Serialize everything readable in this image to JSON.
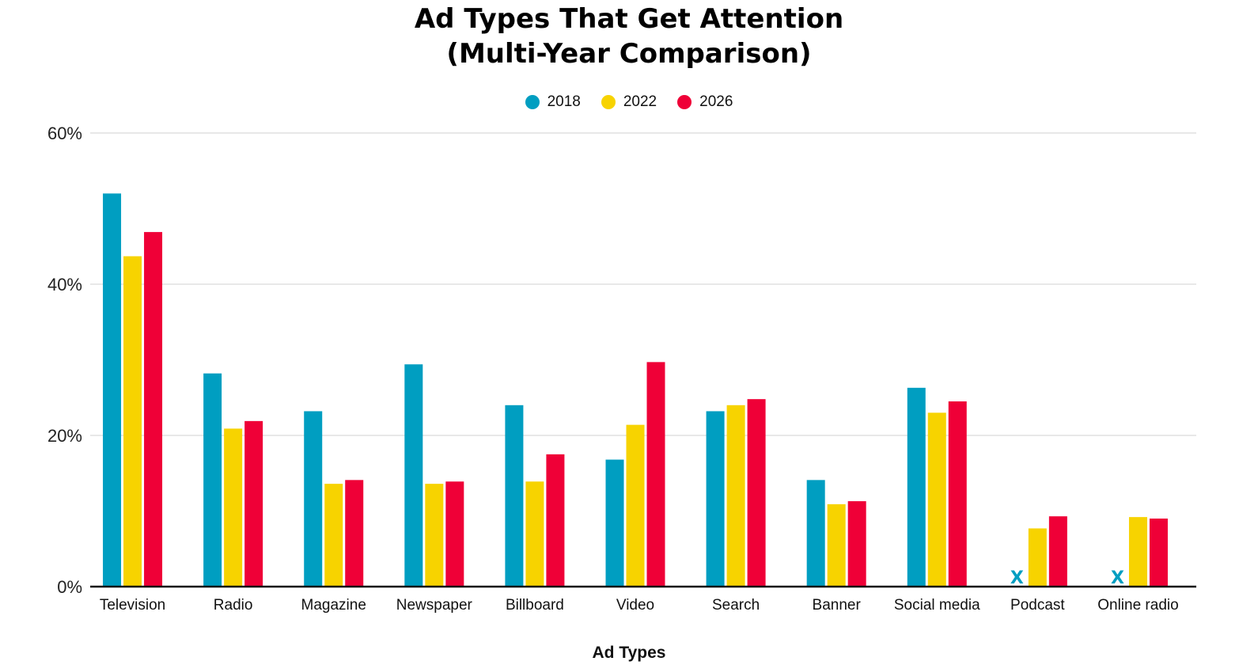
{
  "chart_data": {
    "type": "bar",
    "title": [
      "Ad Types That Get Attention",
      "(Multi-Year Comparison)"
    ],
    "xlabel": "Ad Types",
    "ylabel": "",
    "ylim": [
      0,
      60
    ],
    "yticks": [
      0,
      20,
      40,
      60
    ],
    "ytick_labels": [
      "0%",
      "20%",
      "40%",
      "60%"
    ],
    "grid": true,
    "legend_placement": "top-center",
    "categories": [
      "Television",
      "Radio",
      "Magazine",
      "Newspaper",
      "Billboard",
      "Video",
      "Search",
      "Banner",
      "Social media",
      "Podcast",
      "Online radio"
    ],
    "series": [
      {
        "name": "2018",
        "color": "#009EC1",
        "values": [
          52,
          28.2,
          23.2,
          29.4,
          24,
          16.8,
          23.2,
          14.1,
          26.3,
          null,
          null
        ]
      },
      {
        "name": "2022",
        "color": "#F7D300",
        "values": [
          43.7,
          20.9,
          13.6,
          13.6,
          13.9,
          21.4,
          24,
          10.9,
          23,
          7.7,
          9.2
        ]
      },
      {
        "name": "2026",
        "color": "#EF0037",
        "values": [
          46.9,
          21.9,
          14.1,
          13.9,
          17.5,
          29.7,
          24.8,
          11.3,
          24.5,
          9.3,
          9
        ]
      }
    ],
    "missing_marker": "X"
  }
}
